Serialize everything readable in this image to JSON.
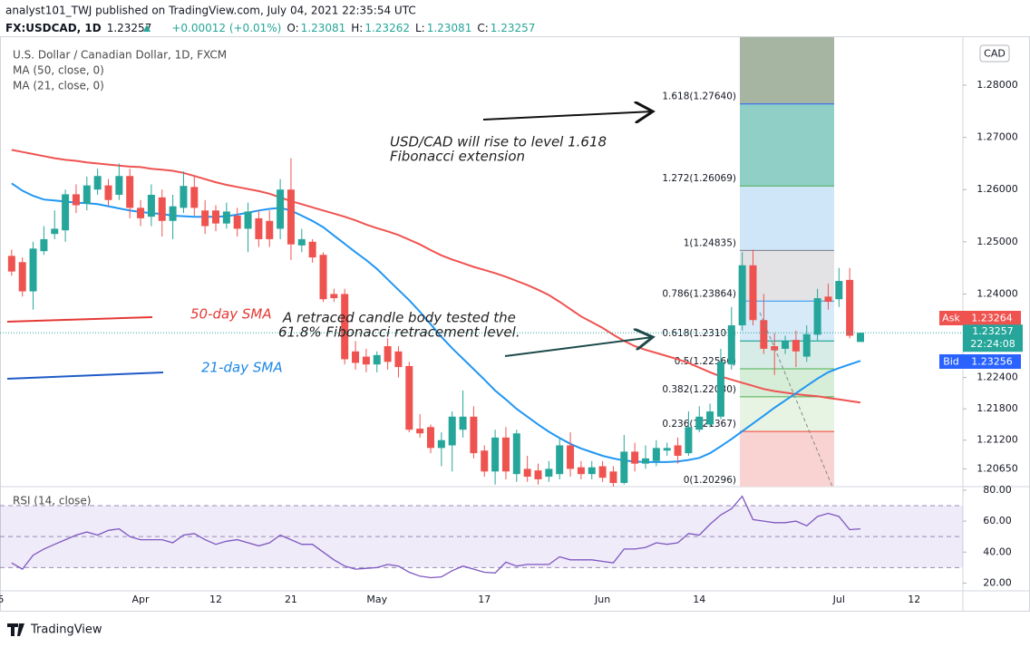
{
  "header": {
    "published": "analyst101_TWJ published on TradingView.com, July 04, 2021 22:35:54 UTC",
    "symbol": "FX:USDCAD, 1D",
    "last": "1.23257",
    "change": "+0.00012 (+0.01%)",
    "ohlc": [
      {
        "label": "O:",
        "value": "1.23081"
      },
      {
        "label": "H:",
        "value": "1.23262"
      },
      {
        "label": "L:",
        "value": "1.23081"
      },
      {
        "label": "C:",
        "value": "1.23257"
      }
    ]
  },
  "annotations": {
    "target_1": "USD/CAD will rise to level 1.618",
    "target_2": "Fibonacci extension",
    "retrace_1": "A  retraced candle body  tested the",
    "retrace_2": "61.8% Fibonacci retracement level.",
    "sma50": "50-day SMA",
    "sma21": "21-day SMA"
  },
  "footer": "TradingView",
  "chart_data": [
    {
      "type": "candlestick",
      "title": "U.S. Dollar / Canadian Dollar, 1D, FXCM",
      "currency": "CAD",
      "up_color": "#26a69a",
      "down_color": "#ef5350",
      "categories": [
        "5",
        null,
        null,
        null,
        null,
        null,
        null,
        null,
        null,
        null,
        null,
        null,
        null,
        "Apr",
        null,
        null,
        null,
        null,
        null,
        null,
        "12",
        null,
        null,
        null,
        null,
        null,
        null,
        "21",
        null,
        null,
        null,
        null,
        null,
        null,
        null,
        "May",
        null,
        null,
        null,
        null,
        null,
        null,
        null,
        null,
        null,
        "17",
        null,
        null,
        null,
        null,
        null,
        null,
        null,
        null,
        null,
        null,
        "Jun",
        null,
        null,
        null,
        null,
        null,
        null,
        null,
        null,
        "14",
        null,
        null,
        null,
        null,
        null,
        null,
        null,
        null,
        null,
        null,
        null,
        null,
        "Jul",
        null,
        null,
        null,
        null,
        null,
        null,
        "12",
        null,
        null,
        null,
        null
      ],
      "open": [
        null,
        1.2473,
        1.2461,
        1.2405,
        1.2482,
        1.2515,
        1.2522,
        1.2591,
        1.2573,
        1.26,
        1.2608,
        1.259,
        1.2626,
        1.2565,
        1.2548,
        1.2585,
        1.254,
        1.2565,
        1.2605,
        1.256,
        1.256,
        1.2535,
        1.255,
        1.2525,
        1.2545,
        1.254,
        1.2525,
        1.26,
        1.2493,
        1.25,
        1.2475,
        1.24,
        1.24,
        1.229,
        1.228,
        1.2265,
        1.23,
        1.229,
        1.2262,
        1.2142,
        1.2145,
        1.2105,
        1.211,
        1.214,
        1.2165,
        1.21,
        1.206,
        1.2125,
        1.2055,
        1.2065,
        1.2062,
        1.205,
        1.2055,
        1.211,
        1.2068,
        1.2055,
        1.207,
        1.206,
        1.2038,
        1.2098,
        1.2075,
        1.208,
        1.21,
        1.211,
        1.2095,
        1.214,
        1.215,
        1.2165,
        1.2265,
        1.234,
        1.2455,
        1.235,
        1.23,
        1.2295,
        1.2312,
        1.228,
        1.2322,
        1.2395,
        1.239,
        1.2427,
        1.23081,
        null,
        null,
        null,
        null,
        null,
        null,
        null,
        null,
        null
      ],
      "high": [
        null,
        1.2485,
        1.247,
        1.25,
        1.253,
        1.256,
        1.26,
        1.261,
        1.2625,
        1.264,
        1.262,
        1.265,
        1.264,
        1.258,
        1.261,
        1.26,
        1.259,
        1.2635,
        1.2625,
        1.258,
        1.257,
        1.2575,
        1.2565,
        1.2575,
        1.256,
        1.256,
        1.262,
        1.266,
        1.2525,
        1.2505,
        1.248,
        1.241,
        1.241,
        1.231,
        1.2295,
        1.229,
        1.2315,
        1.23,
        1.227,
        1.217,
        1.215,
        1.2135,
        1.2175,
        1.2215,
        1.2185,
        1.211,
        1.214,
        1.2145,
        1.214,
        1.209,
        1.2075,
        1.208,
        1.2125,
        1.2135,
        1.208,
        1.208,
        1.208,
        1.207,
        1.213,
        1.2115,
        1.211,
        1.212,
        1.2115,
        1.2125,
        1.2175,
        1.2185,
        1.219,
        1.2295,
        1.2375,
        1.248,
        1.2485,
        1.24,
        1.2325,
        1.232,
        1.233,
        1.234,
        1.241,
        1.242,
        1.245,
        1.245,
        1.23262,
        null,
        null,
        null,
        null,
        null,
        null,
        null,
        null,
        null
      ],
      "low": [
        null,
        1.2435,
        1.2395,
        1.237,
        1.2475,
        1.2505,
        1.25,
        1.2555,
        1.256,
        1.259,
        1.257,
        1.258,
        1.2545,
        1.253,
        1.253,
        1.251,
        1.2505,
        1.2555,
        1.255,
        1.2515,
        1.252,
        1.2525,
        1.251,
        1.248,
        1.249,
        1.249,
        1.2505,
        1.2465,
        1.248,
        1.246,
        1.2385,
        1.2385,
        1.2265,
        1.2255,
        1.225,
        1.225,
        1.2255,
        1.224,
        1.2135,
        1.2125,
        1.2095,
        1.207,
        1.206,
        1.2125,
        1.2085,
        1.205,
        1.2035,
        1.2045,
        1.204,
        1.204,
        1.2035,
        1.204,
        1.2045,
        1.205,
        1.2045,
        1.2045,
        1.204,
        1.203,
        1.2035,
        1.206,
        1.2065,
        1.207,
        1.209,
        1.2075,
        1.209,
        1.2135,
        1.2145,
        1.216,
        1.2255,
        1.233,
        1.234,
        1.2285,
        1.2245,
        1.2285,
        1.226,
        1.227,
        1.231,
        1.237,
        1.2375,
        1.2315,
        1.23081,
        null,
        null,
        null,
        null,
        null,
        null,
        null,
        null,
        null
      ],
      "close": [
        null,
        1.2443,
        1.2405,
        1.2487,
        1.2505,
        1.2525,
        1.2591,
        1.257,
        1.2608,
        1.2626,
        1.258,
        1.2626,
        1.2565,
        1.2545,
        1.259,
        1.254,
        1.2568,
        1.2607,
        1.2565,
        1.253,
        1.2535,
        1.2558,
        1.2525,
        1.2558,
        1.2505,
        1.2505,
        1.26,
        1.2495,
        1.2505,
        1.247,
        1.239,
        1.2392,
        1.2275,
        1.2268,
        1.2265,
        1.2283,
        1.227,
        1.226,
        1.214,
        1.2133,
        1.2105,
        1.212,
        1.2165,
        1.2165,
        1.2095,
        1.206,
        1.2125,
        1.206,
        1.2133,
        1.205,
        1.2045,
        1.2065,
        1.211,
        1.2065,
        1.2055,
        1.2068,
        1.2048,
        1.2038,
        1.2098,
        1.2075,
        1.2085,
        1.2105,
        1.2105,
        1.209,
        1.2145,
        1.2165,
        1.2175,
        1.227,
        1.234,
        1.2455,
        1.235,
        1.2295,
        1.2292,
        1.231,
        1.229,
        1.2323,
        1.2392,
        1.2385,
        1.2425,
        1.232,
        1.23257,
        null,
        null,
        null,
        null,
        null,
        null,
        null,
        null,
        null
      ],
      "series": [
        {
          "name": "MA (50, close, 0)",
          "color": "#ef5350",
          "values": [
            null,
            1.2676,
            1.2672,
            1.2668,
            1.2664,
            1.266,
            1.2657,
            1.2655,
            1.2652,
            1.265,
            1.2648,
            1.2646,
            1.2644,
            1.2643,
            1.264,
            1.2638,
            1.2636,
            1.2632,
            1.2626,
            1.262,
            1.2614,
            1.2609,
            1.2605,
            1.2601,
            1.2597,
            1.2592,
            1.2585,
            1.2578,
            1.2572,
            1.2566,
            1.256,
            1.2554,
            1.2548,
            1.2541,
            1.2533,
            1.2526,
            1.252,
            1.2513,
            1.2504,
            1.2495,
            1.2484,
            1.2474,
            1.2466,
            1.2459,
            1.2452,
            1.2446,
            1.244,
            1.2433,
            1.2425,
            1.2417,
            1.2408,
            1.2398,
            1.2385,
            1.2371,
            1.2357,
            1.2346,
            1.2335,
            1.2322,
            1.231,
            1.23,
            1.2293,
            1.2287,
            1.2281,
            1.2275,
            1.2268,
            1.2259,
            1.225,
            1.2242,
            1.2236,
            1.223,
            1.2224,
            1.2218,
            1.2214,
            1.2211,
            1.2208,
            1.2206,
            1.2204,
            1.2201,
            1.2198,
            1.2195,
            1.2192,
            null,
            null,
            null,
            null,
            null,
            null,
            null,
            null,
            null
          ]
        },
        {
          "name": "MA (21, close, 0)",
          "color": "#2196f3",
          "values": [
            null,
            1.2612,
            1.2598,
            1.2588,
            1.2581,
            1.2579,
            1.2577,
            1.2575,
            1.2574,
            1.2572,
            1.2568,
            1.2564,
            1.256,
            1.2557,
            1.2555,
            1.2553,
            1.255,
            1.2549,
            1.2548,
            1.2548,
            1.2548,
            1.2549,
            1.2552,
            1.2556,
            1.256,
            1.2563,
            1.2565,
            1.256,
            1.255,
            1.254,
            1.2528,
            1.2512,
            1.2496,
            1.248,
            1.2465,
            1.2448,
            1.2428,
            1.2408,
            1.2388,
            1.2366,
            1.2342,
            1.2318,
            1.2296,
            1.2276,
            1.2256,
            1.2236,
            1.2215,
            1.2198,
            1.218,
            1.2165,
            1.215,
            1.2136,
            1.2124,
            1.2113,
            1.2104,
            1.2097,
            1.209,
            1.2085,
            1.2081,
            1.2079,
            1.2078,
            1.2078,
            1.2078,
            1.2079,
            1.2082,
            1.2086,
            1.2095,
            1.2108,
            1.2122,
            1.2137,
            1.2152,
            1.2167,
            1.2182,
            1.2196,
            1.221,
            1.2224,
            1.2238,
            1.225,
            1.2258,
            1.2265,
            1.2272,
            null,
            null,
            null,
            null,
            null,
            null,
            null,
            null,
            null
          ]
        }
      ],
      "ylim": [
        1.2031,
        1.2892
      ],
      "yticks": [
        {
          "value": 1.2065,
          "label": "1.20650"
        },
        {
          "value": 1.212,
          "label": "1.21200"
        },
        {
          "value": 1.218,
          "label": "1.21800"
        },
        {
          "value": 1.224,
          "label": "1.22400"
        },
        {
          "value": 1.24,
          "label": "1.24000"
        },
        {
          "value": 1.25,
          "label": "1.25000"
        },
        {
          "value": 1.26,
          "label": "1.26000"
        },
        {
          "value": 1.27,
          "label": "1.27000"
        },
        {
          "value": 1.28,
          "label": "1.28000"
        }
      ],
      "fib": [
        {
          "label": "1.618(1.27640)",
          "value": 1.2764,
          "color": "#2962ff",
          "fill": "#8fcfc6"
        },
        {
          "label": "1.272(1.26069)",
          "value": 1.26069,
          "color": "#4caf50",
          "fill": "#cfe6f8"
        },
        {
          "label": "1(1.24835)",
          "value": 1.24835,
          "color": "#787b86",
          "fill": "#e3e3e6"
        },
        {
          "label": "0.786(1.23864)",
          "value": 1.23864,
          "color": "#2196f3",
          "fill": "#d6eaf8"
        },
        {
          "label": "0.618(1.23101)",
          "value": 1.23101,
          "color": "#009688",
          "fill": "#d7ece6"
        },
        {
          "label": "0.5(1.22566)",
          "value": 1.22566,
          "color": "#4caf50",
          "fill": "#d6edd8"
        },
        {
          "label": "0.382(1.22030)",
          "value": 1.2203,
          "color": "#4caf50",
          "fill": "#e7f4e3"
        },
        {
          "label": "0.236(1.21367)",
          "value": 1.21367,
          "color": "#f44336",
          "fill": "#f9d2d2"
        },
        {
          "label": "0(1.20296)",
          "value": 1.20296,
          "color": "#787b86",
          "fill": null
        }
      ],
      "price_tags": {
        "ask_label": "Ask",
        "ask": "1.23264",
        "last": "1.23257",
        "countdown": "22:24:08",
        "bid_label": "Bid",
        "bid": "1.23256"
      }
    },
    {
      "type": "line",
      "title": "RSI (14, close)",
      "color": "#7e57c2",
      "values": [
        null,
        33,
        29,
        38,
        42,
        45,
        48,
        51,
        53,
        51,
        54,
        55,
        50,
        48,
        48,
        48,
        46,
        51,
        52,
        48,
        45,
        47,
        48,
        46,
        44,
        46,
        51,
        48,
        45,
        45,
        40,
        35,
        31,
        29,
        29.5,
        30,
        32,
        31,
        27,
        24.5,
        23.5,
        24,
        28,
        31,
        29,
        27,
        26.5,
        33.5,
        31,
        32,
        32,
        32,
        37,
        35,
        35,
        35,
        34,
        33,
        42,
        42,
        43,
        46,
        45,
        46,
        52,
        51,
        58,
        64,
        68,
        76,
        61,
        60,
        59,
        59,
        60,
        57,
        63,
        65,
        63,
        54.5,
        55,
        null,
        null,
        null,
        null,
        null,
        null,
        null,
        null,
        null
      ],
      "ylim": [
        15,
        81.7
      ],
      "yticks": [
        {
          "value": 80,
          "label": "80.00"
        },
        {
          "value": 60,
          "label": "60.00"
        },
        {
          "value": 40,
          "label": "40.00"
        },
        {
          "value": 20,
          "label": "20.00"
        }
      ],
      "levels": [
        70,
        50,
        30
      ]
    }
  ]
}
